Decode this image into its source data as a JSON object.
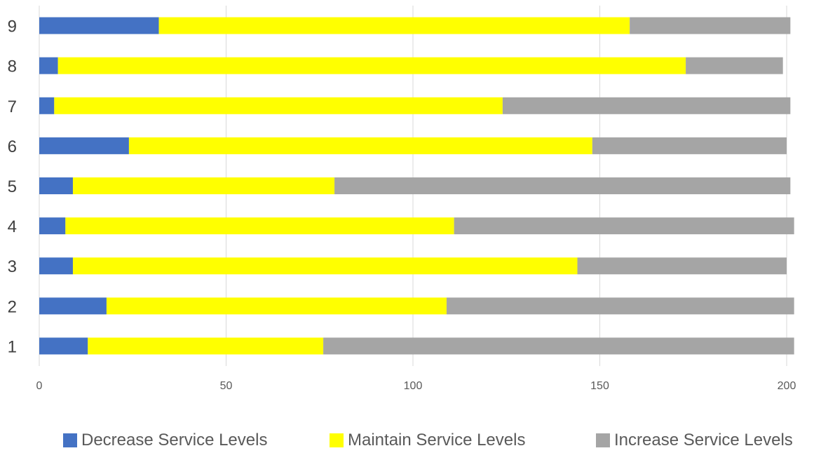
{
  "chart_data": {
    "type": "bar",
    "orientation": "horizontal",
    "stacked": true,
    "categories": [
      "1",
      "2",
      "3",
      "4",
      "5",
      "6",
      "7",
      "8",
      "9"
    ],
    "series": [
      {
        "name": "Decrease Service Levels",
        "color": "#4472c4",
        "values": [
          13,
          18,
          9,
          7,
          9,
          24,
          4,
          5,
          32
        ]
      },
      {
        "name": "Maintain Service Levels",
        "color": "#ffff00",
        "values": [
          63,
          91,
          135,
          104,
          70,
          124,
          120,
          168,
          126
        ]
      },
      {
        "name": "Increase Service Levels",
        "color": "#a5a5a5",
        "values": [
          126,
          93,
          56,
          91,
          122,
          52,
          77,
          26,
          43
        ]
      }
    ],
    "x_ticks": [
      "0",
      "50",
      "100",
      "150",
      "200"
    ],
    "xlim": [
      0,
      200
    ],
    "grid": true,
    "legend_position": "bottom",
    "title": "",
    "xlabel": "",
    "ylabel": ""
  }
}
